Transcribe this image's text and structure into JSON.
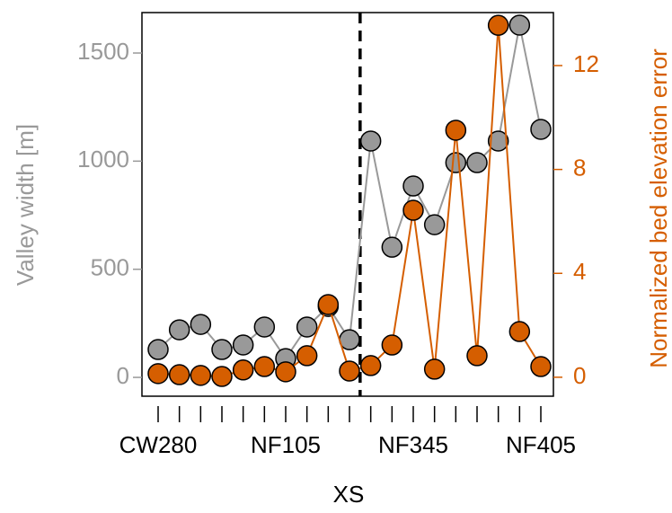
{
  "chart_data": {
    "type": "line",
    "x_label": "XS",
    "y_label": "Valley width [m]",
    "y2_label": "Normalized bed elevation error",
    "categories": [
      "CW280",
      null,
      null,
      null,
      null,
      null,
      "NF105",
      null,
      null,
      null,
      null,
      null,
      "NF345",
      null,
      null,
      null,
      null,
      null,
      "NF405"
    ],
    "series": [
      {
        "name": "Valley width [m]",
        "color": "#999999",
        "marker_fill": "#999999",
        "values": [
          129,
          220,
          245,
          129,
          150,
          233,
          87,
          233,
          328,
          174,
          1093,
          602,
          885,
          706,
          993,
          993,
          1093,
          1629,
          1147
        ]
      },
      {
        "name": "Normalized bed elevation error",
        "color": "#d55e00",
        "marker_fill": "#d55e00",
        "axis": "y2",
        "values": [
          0.14,
          0.1,
          0.07,
          0.03,
          0.28,
          0.41,
          0.21,
          0.83,
          2.8,
          0.24,
          0.45,
          1.24,
          6.43,
          0.31,
          9.51,
          0.83,
          13.55,
          1.76,
          0.41
        ]
      }
    ],
    "ylim": [
      -87,
      1687
    ],
    "yticks": [
      0,
      500,
      1000,
      1500
    ],
    "y2lim": [
      -0.73,
      14.04
    ],
    "y2ticks": [
      0,
      4,
      8,
      12
    ],
    "grid": false
  }
}
